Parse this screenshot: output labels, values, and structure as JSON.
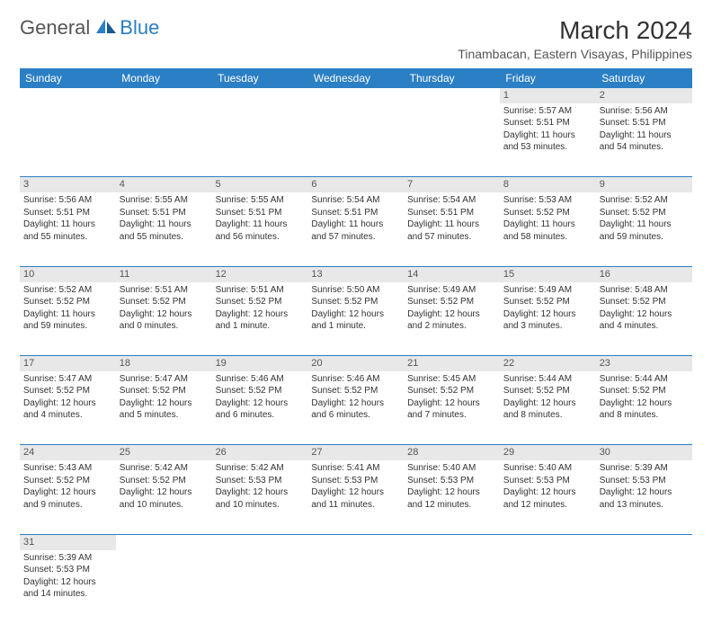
{
  "logo": {
    "text1": "General",
    "text2": "Blue"
  },
  "header": {
    "title": "March 2024",
    "location": "Tinambacan, Eastern Visayas, Philippines"
  },
  "colors": {
    "brand": "#2b7fc4",
    "header_bg": "#2b7fc4",
    "daynum_bg": "#e8e8e8",
    "text": "#333333"
  },
  "weekdays": [
    "Sunday",
    "Monday",
    "Tuesday",
    "Wednesday",
    "Thursday",
    "Friday",
    "Saturday"
  ],
  "weeks": [
    [
      null,
      null,
      null,
      null,
      null,
      {
        "d": "1",
        "sr": "Sunrise: 5:57 AM",
        "ss": "Sunset: 5:51 PM",
        "dl1": "Daylight: 11 hours",
        "dl2": "and 53 minutes."
      },
      {
        "d": "2",
        "sr": "Sunrise: 5:56 AM",
        "ss": "Sunset: 5:51 PM",
        "dl1": "Daylight: 11 hours",
        "dl2": "and 54 minutes."
      }
    ],
    [
      {
        "d": "3",
        "sr": "Sunrise: 5:56 AM",
        "ss": "Sunset: 5:51 PM",
        "dl1": "Daylight: 11 hours",
        "dl2": "and 55 minutes."
      },
      {
        "d": "4",
        "sr": "Sunrise: 5:55 AM",
        "ss": "Sunset: 5:51 PM",
        "dl1": "Daylight: 11 hours",
        "dl2": "and 55 minutes."
      },
      {
        "d": "5",
        "sr": "Sunrise: 5:55 AM",
        "ss": "Sunset: 5:51 PM",
        "dl1": "Daylight: 11 hours",
        "dl2": "and 56 minutes."
      },
      {
        "d": "6",
        "sr": "Sunrise: 5:54 AM",
        "ss": "Sunset: 5:51 PM",
        "dl1": "Daylight: 11 hours",
        "dl2": "and 57 minutes."
      },
      {
        "d": "7",
        "sr": "Sunrise: 5:54 AM",
        "ss": "Sunset: 5:51 PM",
        "dl1": "Daylight: 11 hours",
        "dl2": "and 57 minutes."
      },
      {
        "d": "8",
        "sr": "Sunrise: 5:53 AM",
        "ss": "Sunset: 5:52 PM",
        "dl1": "Daylight: 11 hours",
        "dl2": "and 58 minutes."
      },
      {
        "d": "9",
        "sr": "Sunrise: 5:52 AM",
        "ss": "Sunset: 5:52 PM",
        "dl1": "Daylight: 11 hours",
        "dl2": "and 59 minutes."
      }
    ],
    [
      {
        "d": "10",
        "sr": "Sunrise: 5:52 AM",
        "ss": "Sunset: 5:52 PM",
        "dl1": "Daylight: 11 hours",
        "dl2": "and 59 minutes."
      },
      {
        "d": "11",
        "sr": "Sunrise: 5:51 AM",
        "ss": "Sunset: 5:52 PM",
        "dl1": "Daylight: 12 hours",
        "dl2": "and 0 minutes."
      },
      {
        "d": "12",
        "sr": "Sunrise: 5:51 AM",
        "ss": "Sunset: 5:52 PM",
        "dl1": "Daylight: 12 hours",
        "dl2": "and 1 minute."
      },
      {
        "d": "13",
        "sr": "Sunrise: 5:50 AM",
        "ss": "Sunset: 5:52 PM",
        "dl1": "Daylight: 12 hours",
        "dl2": "and 1 minute."
      },
      {
        "d": "14",
        "sr": "Sunrise: 5:49 AM",
        "ss": "Sunset: 5:52 PM",
        "dl1": "Daylight: 12 hours",
        "dl2": "and 2 minutes."
      },
      {
        "d": "15",
        "sr": "Sunrise: 5:49 AM",
        "ss": "Sunset: 5:52 PM",
        "dl1": "Daylight: 12 hours",
        "dl2": "and 3 minutes."
      },
      {
        "d": "16",
        "sr": "Sunrise: 5:48 AM",
        "ss": "Sunset: 5:52 PM",
        "dl1": "Daylight: 12 hours",
        "dl2": "and 4 minutes."
      }
    ],
    [
      {
        "d": "17",
        "sr": "Sunrise: 5:47 AM",
        "ss": "Sunset: 5:52 PM",
        "dl1": "Daylight: 12 hours",
        "dl2": "and 4 minutes."
      },
      {
        "d": "18",
        "sr": "Sunrise: 5:47 AM",
        "ss": "Sunset: 5:52 PM",
        "dl1": "Daylight: 12 hours",
        "dl2": "and 5 minutes."
      },
      {
        "d": "19",
        "sr": "Sunrise: 5:46 AM",
        "ss": "Sunset: 5:52 PM",
        "dl1": "Daylight: 12 hours",
        "dl2": "and 6 minutes."
      },
      {
        "d": "20",
        "sr": "Sunrise: 5:46 AM",
        "ss": "Sunset: 5:52 PM",
        "dl1": "Daylight: 12 hours",
        "dl2": "and 6 minutes."
      },
      {
        "d": "21",
        "sr": "Sunrise: 5:45 AM",
        "ss": "Sunset: 5:52 PM",
        "dl1": "Daylight: 12 hours",
        "dl2": "and 7 minutes."
      },
      {
        "d": "22",
        "sr": "Sunrise: 5:44 AM",
        "ss": "Sunset: 5:52 PM",
        "dl1": "Daylight: 12 hours",
        "dl2": "and 8 minutes."
      },
      {
        "d": "23",
        "sr": "Sunrise: 5:44 AM",
        "ss": "Sunset: 5:52 PM",
        "dl1": "Daylight: 12 hours",
        "dl2": "and 8 minutes."
      }
    ],
    [
      {
        "d": "24",
        "sr": "Sunrise: 5:43 AM",
        "ss": "Sunset: 5:52 PM",
        "dl1": "Daylight: 12 hours",
        "dl2": "and 9 minutes."
      },
      {
        "d": "25",
        "sr": "Sunrise: 5:42 AM",
        "ss": "Sunset: 5:52 PM",
        "dl1": "Daylight: 12 hours",
        "dl2": "and 10 minutes."
      },
      {
        "d": "26",
        "sr": "Sunrise: 5:42 AM",
        "ss": "Sunset: 5:53 PM",
        "dl1": "Daylight: 12 hours",
        "dl2": "and 10 minutes."
      },
      {
        "d": "27",
        "sr": "Sunrise: 5:41 AM",
        "ss": "Sunset: 5:53 PM",
        "dl1": "Daylight: 12 hours",
        "dl2": "and 11 minutes."
      },
      {
        "d": "28",
        "sr": "Sunrise: 5:40 AM",
        "ss": "Sunset: 5:53 PM",
        "dl1": "Daylight: 12 hours",
        "dl2": "and 12 minutes."
      },
      {
        "d": "29",
        "sr": "Sunrise: 5:40 AM",
        "ss": "Sunset: 5:53 PM",
        "dl1": "Daylight: 12 hours",
        "dl2": "and 12 minutes."
      },
      {
        "d": "30",
        "sr": "Sunrise: 5:39 AM",
        "ss": "Sunset: 5:53 PM",
        "dl1": "Daylight: 12 hours",
        "dl2": "and 13 minutes."
      }
    ],
    [
      {
        "d": "31",
        "sr": "Sunrise: 5:39 AM",
        "ss": "Sunset: 5:53 PM",
        "dl1": "Daylight: 12 hours",
        "dl2": "and 14 minutes."
      },
      null,
      null,
      null,
      null,
      null,
      null
    ]
  ]
}
